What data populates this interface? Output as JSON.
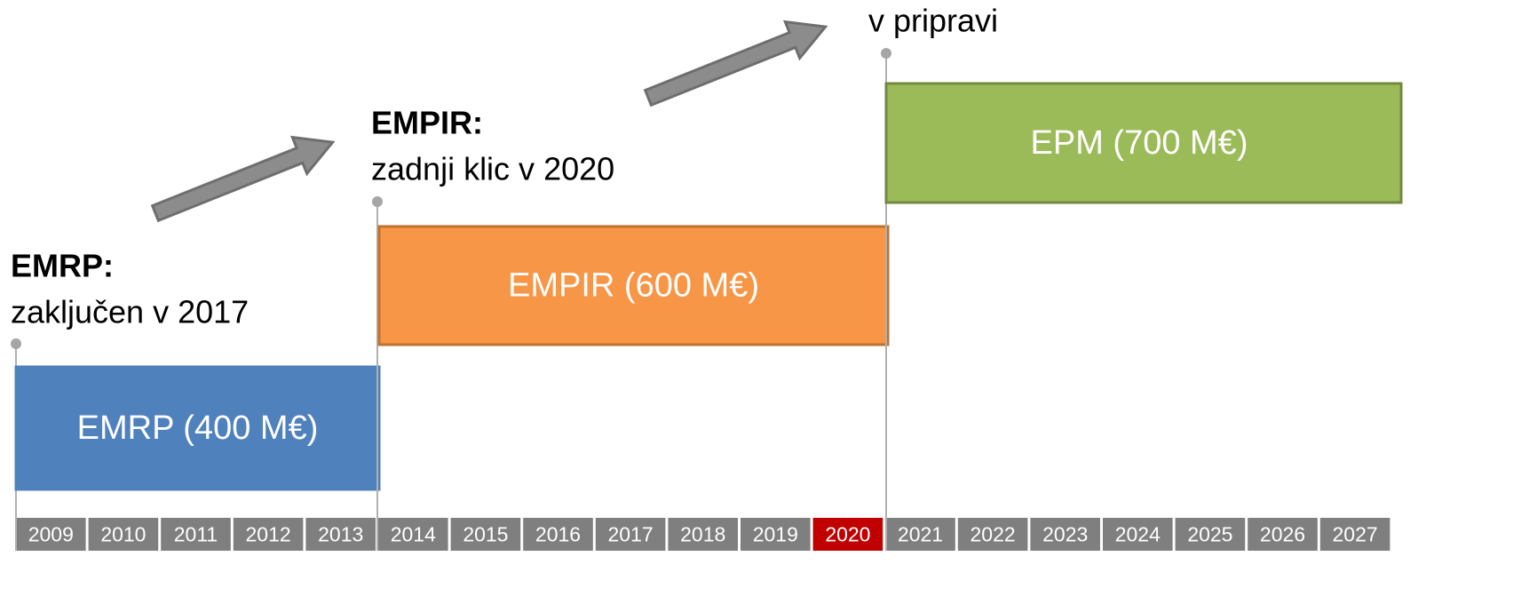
{
  "timeline": {
    "years": [
      {
        "label": "2009",
        "fill": "#7f7f7f"
      },
      {
        "label": "2010",
        "fill": "#7f7f7f"
      },
      {
        "label": "2011",
        "fill": "#7f7f7f"
      },
      {
        "label": "2012",
        "fill": "#7f7f7f"
      },
      {
        "label": "2013",
        "fill": "#7f7f7f"
      },
      {
        "label": "2014",
        "fill": "#7f7f7f"
      },
      {
        "label": "2015",
        "fill": "#7f7f7f"
      },
      {
        "label": "2016",
        "fill": "#7f7f7f"
      },
      {
        "label": "2017",
        "fill": "#7f7f7f"
      },
      {
        "label": "2018",
        "fill": "#7f7f7f"
      },
      {
        "label": "2019",
        "fill": "#7f7f7f"
      },
      {
        "label": "2020",
        "fill": "#c00000"
      },
      {
        "label": "2021",
        "fill": "#7f7f7f"
      },
      {
        "label": "2022",
        "fill": "#7f7f7f"
      },
      {
        "label": "2023",
        "fill": "#7f7f7f"
      },
      {
        "label": "2024",
        "fill": "#7f7f7f"
      },
      {
        "label": "2025",
        "fill": "#7f7f7f"
      },
      {
        "label": "2026",
        "fill": "#7f7f7f"
      },
      {
        "label": "2027",
        "fill": "#7f7f7f"
      }
    ],
    "programs": [
      {
        "label": "EMRP (400 M€)",
        "fill": "#4f81bd",
        "stroke": "#4f81bd",
        "heading": "EMRP:",
        "note": "zaključen v 2017"
      },
      {
        "label": "EMPIR (600 M€)",
        "fill": "#f79646",
        "stroke": "#c0712e",
        "heading": "EMPIR:",
        "note": "zadnji klic v 2020"
      },
      {
        "label": "EPM (700 M€)",
        "fill": "#9bbb59",
        "stroke": "#71893f",
        "note": "v pripravi"
      }
    ]
  }
}
